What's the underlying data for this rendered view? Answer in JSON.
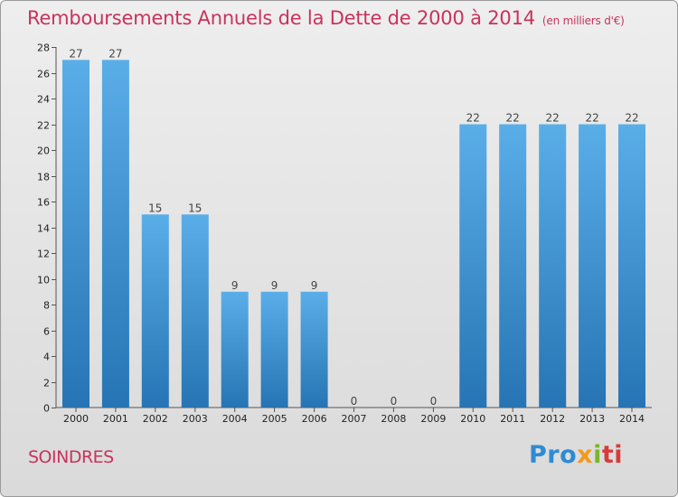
{
  "chart_data": {
    "type": "bar",
    "title": "Remboursements Annuels de la Dette de 2000 à 2014",
    "unit_note": "(en milliers d'€)",
    "categories": [
      "2000",
      "2001",
      "2002",
      "2003",
      "2004",
      "2005",
      "2006",
      "2007",
      "2008",
      "2009",
      "2010",
      "2011",
      "2012",
      "2013",
      "2014"
    ],
    "values": [
      27,
      27,
      15,
      15,
      9,
      9,
      9,
      0,
      0,
      0,
      22,
      22,
      22,
      22,
      22
    ],
    "data_labels": [
      "27",
      "27",
      "15",
      "15",
      "9",
      "9",
      "9",
      "0",
      "0",
      "0",
      "22",
      "22",
      "22",
      "22",
      "22"
    ],
    "ylim": [
      0,
      28
    ],
    "yticks": [
      0,
      2,
      4,
      6,
      8,
      10,
      12,
      14,
      16,
      18,
      20,
      22,
      24,
      26,
      28
    ],
    "grid": false,
    "xlabel": "",
    "ylabel": "",
    "bar_color_top": "#5aaee8",
    "bar_color_bottom": "#2674b4"
  },
  "footer": {
    "commune": "SOINDRES",
    "brand": {
      "p1": "Pro",
      "p2": "x",
      "p3": "i",
      "p4": "ti"
    }
  }
}
